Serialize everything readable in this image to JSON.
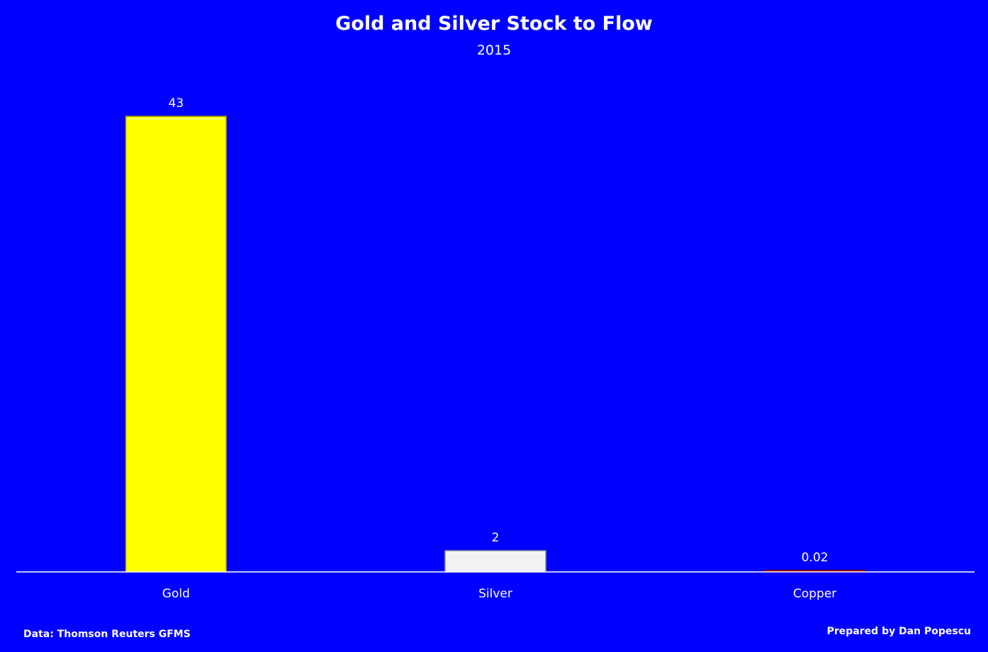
{
  "chart_data": {
    "type": "bar",
    "title": "Gold and Silver Stock to Flow",
    "subtitle": "2015",
    "categories": [
      "Gold",
      "Silver",
      "Copper"
    ],
    "values": [
      43,
      2,
      0.02
    ],
    "data_labels": [
      "43",
      "2",
      "0.02"
    ],
    "ylim": [
      0,
      43
    ],
    "grid": false,
    "legend": "none",
    "colors": {
      "background": "#0000ff",
      "axis": "#ffffff",
      "text": "#ffffff",
      "bars": [
        "#ffff00",
        "#f2f2f2",
        "#cc0000"
      ]
    }
  },
  "footer": {
    "source": "Data: Thomson Reuters GFMS",
    "credit": "Prepared by Dan Popescu"
  }
}
